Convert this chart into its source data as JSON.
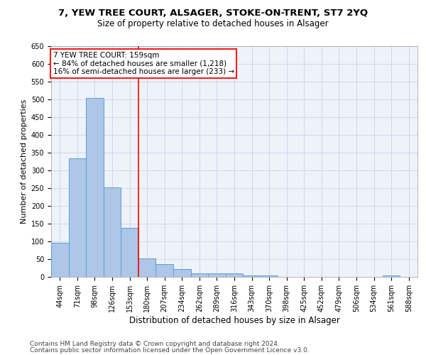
{
  "title1": "7, YEW TREE COURT, ALSAGER, STOKE-ON-TRENT, ST7 2YQ",
  "title2": "Size of property relative to detached houses in Alsager",
  "xlabel": "Distribution of detached houses by size in Alsager",
  "ylabel": "Number of detached properties",
  "categories": [
    "44sqm",
    "71sqm",
    "98sqm",
    "126sqm",
    "153sqm",
    "180sqm",
    "207sqm",
    "234sqm",
    "262sqm",
    "289sqm",
    "316sqm",
    "343sqm",
    "370sqm",
    "398sqm",
    "425sqm",
    "452sqm",
    "479sqm",
    "506sqm",
    "534sqm",
    "561sqm",
    "588sqm"
  ],
  "values": [
    97,
    335,
    505,
    253,
    138,
    53,
    37,
    22,
    10,
    10,
    10,
    5,
    5,
    0,
    0,
    0,
    0,
    0,
    0,
    5,
    0
  ],
  "bar_color": "#aec6e8",
  "bar_edgecolor": "#5a9fd4",
  "redline_x": 4.5,
  "annotation_text": "7 YEW TREE COURT: 159sqm\n← 84% of detached houses are smaller (1,218)\n16% of semi-detached houses are larger (233) →",
  "box_color": "white",
  "box_edgecolor": "red",
  "redline_color": "red",
  "ylim": [
    0,
    650
  ],
  "yticks": [
    0,
    50,
    100,
    150,
    200,
    250,
    300,
    350,
    400,
    450,
    500,
    550,
    600,
    650
  ],
  "footer1": "Contains HM Land Registry data © Crown copyright and database right 2024.",
  "footer2": "Contains public sector information licensed under the Open Government Licence v3.0.",
  "background_color": "#eef2f9",
  "grid_color": "#c8d4e8",
  "title1_fontsize": 9.5,
  "title2_fontsize": 8.5,
  "axis_label_fontsize": 8,
  "tick_fontsize": 7,
  "annot_fontsize": 7.5,
  "footer_fontsize": 6.5
}
